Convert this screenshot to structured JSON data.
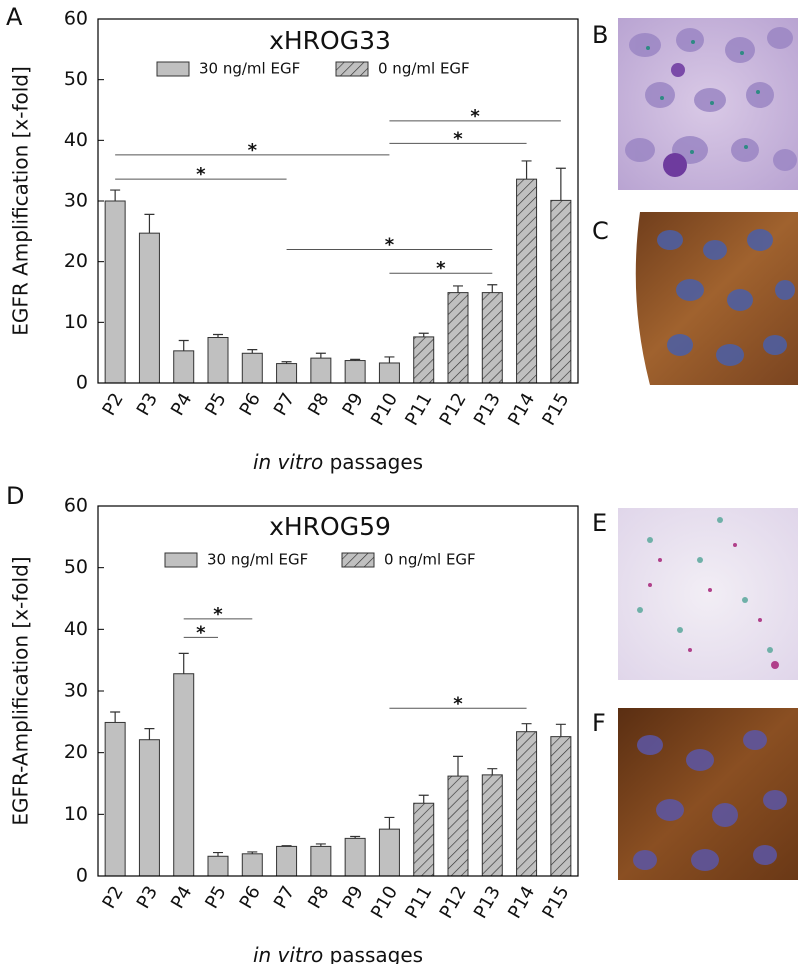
{
  "chart_data": [
    {
      "type": "bar",
      "panel": "A",
      "title": "xHROG33",
      "y_label": "EGFR Amplification [x-fold]",
      "x_label_italic": "in vitro",
      "x_label": "passages",
      "categories": [
        "P2",
        "P3",
        "P4",
        "P5",
        "P6",
        "P7",
        "P8",
        "P9",
        "P10",
        "P11",
        "P12",
        "P13",
        "P14",
        "P15"
      ],
      "series": [
        {
          "name": "30 ng/ml EGF",
          "color": "#c0c0c0",
          "hatch": false,
          "values": [
            30,
            24.7,
            5.3,
            7.5,
            4.9,
            3.2,
            4.1,
            3.7,
            3.3,
            null,
            null,
            null,
            null,
            null
          ],
          "errors": [
            1.8,
            3.1,
            1.7,
            0.5,
            0.6,
            0.3,
            0.8,
            0.2,
            1.0,
            null,
            null,
            null,
            null,
            null
          ]
        },
        {
          "name": "0 ng/ml EGF",
          "color": "#c0c0c0",
          "hatch": true,
          "values": [
            null,
            null,
            null,
            null,
            null,
            null,
            null,
            null,
            null,
            7.6,
            14.9,
            14.9,
            33.6,
            30.1
          ],
          "errors": [
            null,
            null,
            null,
            null,
            null,
            null,
            null,
            null,
            null,
            0.6,
            1.1,
            1.3,
            3.0,
            5.3
          ]
        }
      ],
      "significance": [
        {
          "from": 0,
          "to": 8,
          "y": 37.6,
          "label": "*"
        },
        {
          "from": 0,
          "to": 5,
          "y": 33.6,
          "label": "*"
        },
        {
          "from": 5,
          "to": 11,
          "y": 22,
          "label": "*"
        },
        {
          "from": 8,
          "to": 11,
          "y": 18.1,
          "label": "*"
        },
        {
          "from": 8,
          "to": 12,
          "y": 39.5,
          "label": "*"
        },
        {
          "from": 8,
          "to": 13,
          "y": 43.2,
          "label": "*"
        }
      ],
      "ylim": [
        0,
        60
      ],
      "yticks": [
        0,
        10,
        20,
        30,
        40,
        50,
        60
      ]
    },
    {
      "type": "bar",
      "panel": "D",
      "title": "xHROG59",
      "y_label": "EGFR-Amplification [x-fold]",
      "x_label_italic": "in vitro",
      "x_label": "passages",
      "categories": [
        "P2",
        "P3",
        "P4",
        "P5",
        "P6",
        "P7",
        "P8",
        "P9",
        "P10",
        "P11",
        "P12",
        "P13",
        "P14",
        "P15"
      ],
      "series": [
        {
          "name": "30 ng/ml EGF",
          "color": "#c0c0c0",
          "hatch": false,
          "values": [
            24.9,
            22.1,
            32.8,
            3.2,
            3.6,
            4.8,
            4.8,
            6.1,
            7.6,
            null,
            null,
            null,
            null,
            null
          ],
          "errors": [
            1.7,
            1.8,
            3.3,
            0.6,
            0.3,
            0.1,
            0.4,
            0.3,
            1.9,
            null,
            null,
            null,
            null,
            null
          ]
        },
        {
          "name": "0 ng/ml EGF",
          "color": "#c0c0c0",
          "hatch": true,
          "values": [
            null,
            null,
            null,
            null,
            null,
            null,
            null,
            null,
            null,
            11.8,
            16.2,
            16.4,
            23.4,
            22.6
          ],
          "errors": [
            null,
            null,
            null,
            null,
            null,
            null,
            null,
            null,
            null,
            1.3,
            3.2,
            1.0,
            1.3,
            2.0
          ]
        }
      ],
      "significance": [
        {
          "from": 2,
          "to": 3,
          "y": 38.7,
          "label": "*"
        },
        {
          "from": 2,
          "to": 4,
          "y": 41.7,
          "label": "*"
        },
        {
          "from": 8,
          "to": 12,
          "y": 27.2,
          "label": "*"
        }
      ],
      "ylim": [
        0,
        60
      ],
      "yticks": [
        0,
        10,
        20,
        30,
        40,
        50,
        60
      ]
    }
  ],
  "image_panels": [
    "B",
    "C",
    "E",
    "F"
  ]
}
